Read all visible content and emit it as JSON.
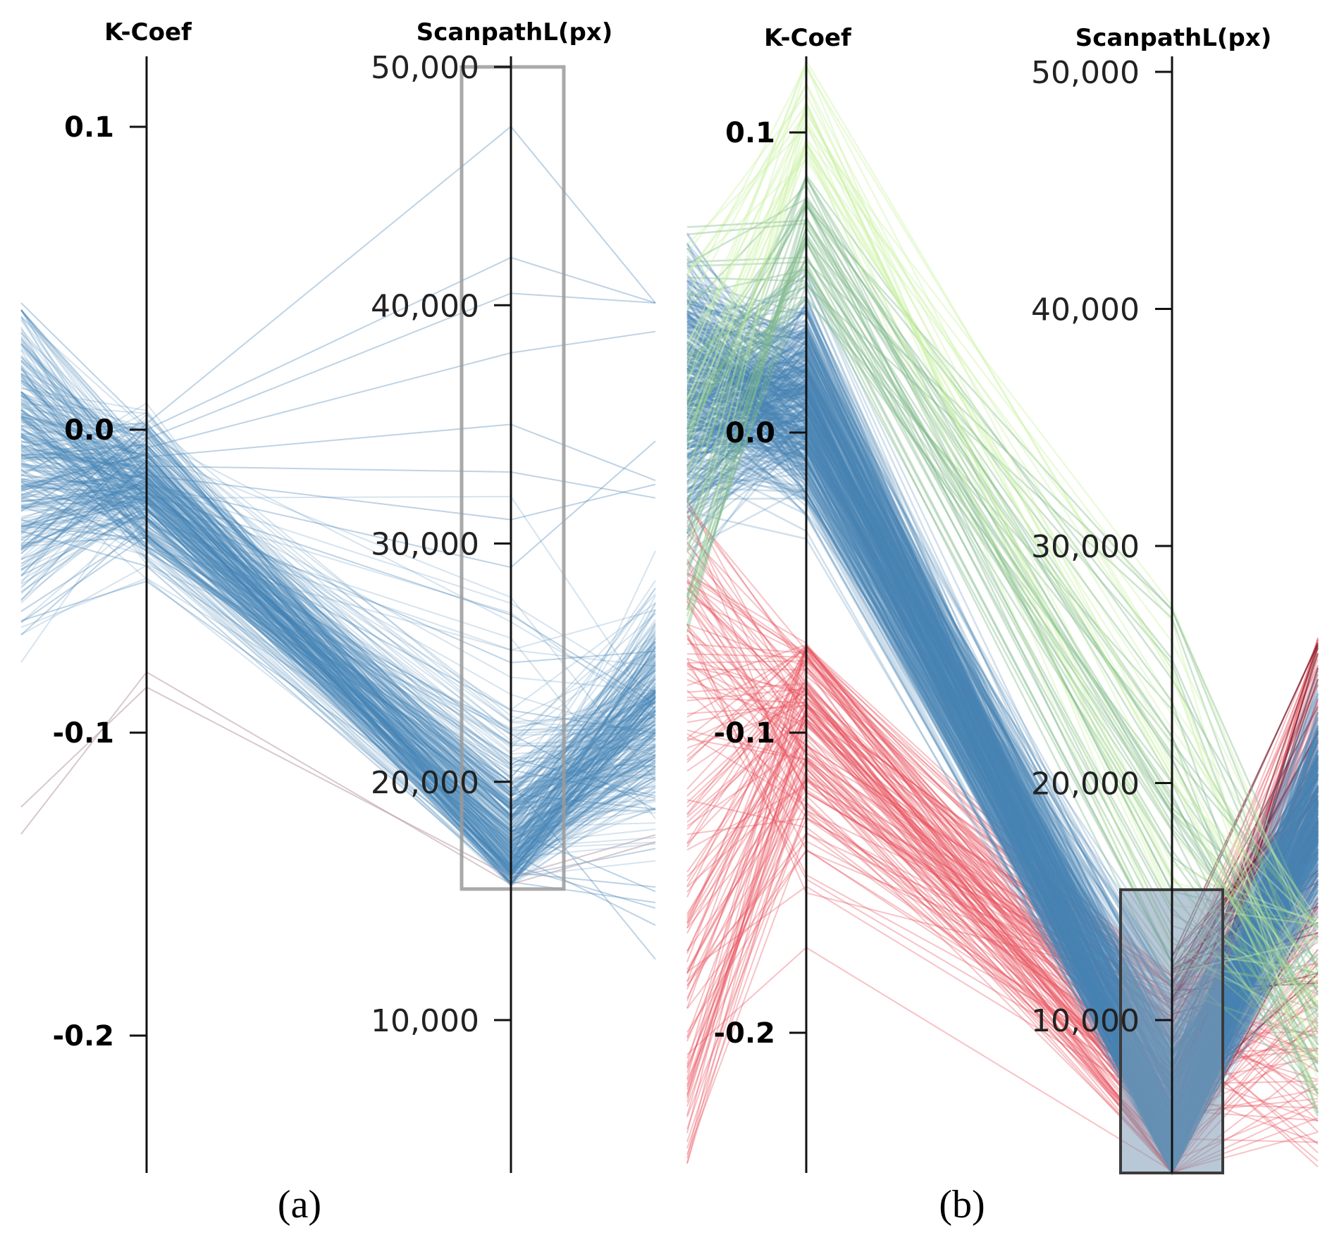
{
  "chart_data": [
    {
      "type": "parallel-coordinates",
      "panel_label": "(a)",
      "axes": [
        {
          "name": "K-Coef",
          "domain": [
            -0.245,
            0.12
          ],
          "ticks": [
            0.1,
            0.0,
            -0.1,
            -0.2
          ],
          "tick_labels": [
            "0.1",
            "0.0",
            "-0.1",
            "-0.2"
          ]
        },
        {
          "name": "ScanpathL(px)",
          "domain": [
            3000,
            50500
          ],
          "ticks": [
            50000,
            40000,
            30000,
            20000,
            10000
          ],
          "tick_labels": [
            "50,000",
            "40,000",
            "30,000",
            "20,000",
            "10,000"
          ]
        }
      ],
      "brush": {
        "axis": "ScanpathL(px)",
        "range": [
          15500,
          50000
        ]
      },
      "colors": {
        "selected": "#4682b4",
        "unselected": "#b89aa6"
      },
      "series": [
        {
          "name": "selected (blue)",
          "kcoef": [
            0.002,
            0.0,
            -0.003,
            -0.006,
            -0.009,
            -0.012,
            -0.015,
            -0.018,
            -0.021,
            -0.024,
            -0.027,
            -0.03,
            -0.033,
            -0.036,
            -0.04,
            -0.005,
            -0.01,
            -0.02,
            -0.035,
            -0.05,
            0.001,
            -0.008,
            -0.017,
            -0.026,
            -0.045
          ],
          "scanpath": [
            47500,
            42000,
            40500,
            38000,
            35000,
            33000,
            31000,
            29000,
            27000,
            25000,
            23000,
            22000,
            21000,
            20500,
            20000,
            19500,
            19000,
            18500,
            18000,
            17500,
            17000,
            16500,
            16200,
            16000,
            15800
          ]
        },
        {
          "name": "unselected",
          "kcoef": [
            -0.085,
            -0.08
          ],
          "scanpath": [
            16000,
            15700
          ]
        }
      ]
    },
    {
      "type": "parallel-coordinates",
      "panel_label": "(b)",
      "axes": [
        {
          "name": "K-Coef",
          "domain": [
            -0.245,
            0.125
          ],
          "ticks": [
            0.1,
            0.0,
            -0.1,
            -0.2
          ],
          "tick_labels": [
            "0.1",
            "0.0",
            "-0.1",
            "-0.2"
          ]
        },
        {
          "name": "ScanpathL(px)",
          "domain": [
            3000,
            50500
          ],
          "ticks": [
            50000,
            40000,
            30000,
            20000,
            10000
          ],
          "tick_labels": [
            "50,000",
            "40,000",
            "30,000",
            "20,000",
            "10,000"
          ]
        }
      ],
      "brush": {
        "axis": "ScanpathL(px)",
        "range": [
          3000,
          15500
        ]
      },
      "colors": {
        "high": "#ccf2a8",
        "mid_high": "#7fb88a",
        "mid": "#4682b4",
        "low": "#e8505b",
        "very_low": "#6b0a1a"
      },
      "series": [
        {
          "name": "green",
          "kcoef": [
            0.12,
            0.11,
            0.09,
            0.075,
            0.065,
            0.06
          ],
          "scanpath": [
            27000,
            24000,
            20000,
            17000,
            14000,
            12000
          ]
        },
        {
          "name": "blue",
          "kcoef": [
            0.04,
            0.02,
            0.0,
            -0.02,
            -0.04,
            -0.06,
            -0.08,
            -0.1
          ],
          "scanpath": [
            15000,
            13000,
            11000,
            9000,
            7000,
            5000,
            4000,
            3500
          ]
        },
        {
          "name": "red",
          "kcoef": [
            -0.07,
            -0.09,
            -0.11,
            -0.13,
            -0.15,
            -0.17,
            -0.19,
            -0.21,
            -0.23
          ],
          "scanpath": [
            12000,
            11000,
            10000,
            9000,
            8000,
            7000,
            6000,
            5000,
            4000
          ]
        }
      ]
    }
  ],
  "captions": {
    "a": "(a)",
    "b": "(b)"
  }
}
